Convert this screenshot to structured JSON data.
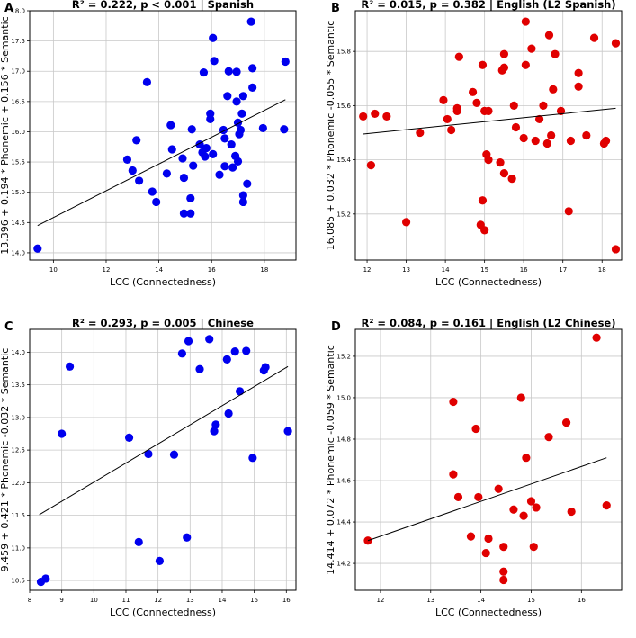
{
  "colors": {
    "blue": "#0000ee",
    "red": "#e00000",
    "grid": "#c8c8c8",
    "line": "#000000"
  },
  "chart_data": [
    {
      "type": "scatter",
      "panel_label": "A",
      "title": "R² = 0.222, p < 0.001 | Spanish",
      "xlabel": "LCC (Connectedness)",
      "ylabel": "13.396 + 0.194 * Phonemic + 0.156 * Semantic",
      "xlim": [
        9.1,
        19.2
      ],
      "ylim": [
        13.88,
        18.0
      ],
      "xticks": [
        10,
        12,
        14,
        16,
        18
      ],
      "yticks": [
        14.0,
        14.5,
        15.0,
        15.5,
        16.0,
        16.5,
        17.0,
        17.5,
        18.0
      ],
      "xtick_labels": [
        "10",
        "12",
        "14",
        "16",
        "18"
      ],
      "ytick_labels": [
        "14.0",
        "14.5",
        "15.0",
        "15.5",
        "16.0",
        "16.5",
        "17.0",
        "17.5",
        "18.0"
      ],
      "grid": true,
      "color": "blue",
      "fit_line": {
        "x": [
          9.4,
          18.8
        ],
        "y": [
          14.45,
          16.53
        ]
      },
      "points": [
        [
          9.4,
          14.07
        ],
        [
          12.8,
          15.54
        ],
        [
          13.0,
          15.36
        ],
        [
          13.15,
          15.86
        ],
        [
          13.25,
          15.19
        ],
        [
          13.55,
          16.82
        ],
        [
          13.75,
          15.01
        ],
        [
          13.9,
          14.84
        ],
        [
          14.3,
          15.31
        ],
        [
          14.45,
          16.11
        ],
        [
          14.5,
          15.71
        ],
        [
          14.9,
          15.56
        ],
        [
          14.95,
          15.24
        ],
        [
          14.95,
          14.65
        ],
        [
          15.2,
          14.9
        ],
        [
          15.2,
          14.65
        ],
        [
          15.3,
          15.44
        ],
        [
          15.25,
          16.04
        ],
        [
          15.55,
          15.79
        ],
        [
          15.65,
          15.66
        ],
        [
          15.7,
          16.98
        ],
        [
          15.75,
          15.59
        ],
        [
          15.8,
          15.73
        ],
        [
          15.95,
          16.3
        ],
        [
          15.95,
          16.21
        ],
        [
          16.05,
          17.55
        ],
        [
          16.1,
          17.17
        ],
        [
          16.05,
          15.63
        ],
        [
          16.3,
          15.29
        ],
        [
          16.45,
          16.03
        ],
        [
          16.5,
          15.43
        ],
        [
          16.5,
          15.89
        ],
        [
          16.6,
          16.59
        ],
        [
          16.65,
          17.0
        ],
        [
          16.75,
          15.79
        ],
        [
          16.8,
          15.41
        ],
        [
          16.9,
          15.6
        ],
        [
          16.95,
          16.5
        ],
        [
          16.95,
          16.99
        ],
        [
          17.0,
          16.15
        ],
        [
          17.05,
          15.96
        ],
        [
          17.0,
          15.51
        ],
        [
          17.15,
          16.3
        ],
        [
          17.2,
          16.59
        ],
        [
          17.2,
          14.95
        ],
        [
          17.2,
          14.84
        ],
        [
          17.35,
          15.14
        ],
        [
          17.5,
          17.82
        ],
        [
          17.55,
          17.05
        ],
        [
          17.55,
          16.73
        ],
        [
          17.95,
          16.06
        ],
        [
          18.75,
          16.04
        ],
        [
          18.8,
          17.16
        ],
        [
          17.1,
          16.03
        ]
      ]
    },
    {
      "type": "scatter",
      "panel_label": "B",
      "title": "R² = 0.015, p = 0.382 | English (L2 Spanish)",
      "xlabel": "LCC (Connectedness)",
      "ylabel": "16.085 + 0.032 * Phonemic -0.055 * Semantic",
      "xlim": [
        11.7,
        18.5
      ],
      "ylim": [
        15.03,
        15.95
      ],
      "xticks": [
        12,
        13,
        14,
        15,
        16,
        17,
        18
      ],
      "yticks": [
        15.2,
        15.4,
        15.6,
        15.8
      ],
      "xtick_labels": [
        "12",
        "13",
        "14",
        "15",
        "16",
        "17",
        "18"
      ],
      "ytick_labels": [
        "15.2",
        "15.4",
        "15.6",
        "15.8"
      ],
      "grid": true,
      "color": "red",
      "fit_line": {
        "x": [
          11.9,
          18.35
        ],
        "y": [
          15.495,
          15.59
        ]
      },
      "points": [
        [
          11.9,
          15.56
        ],
        [
          12.1,
          15.38
        ],
        [
          12.2,
          15.57
        ],
        [
          12.5,
          15.56
        ],
        [
          13.0,
          15.17
        ],
        [
          13.35,
          15.5
        ],
        [
          13.95,
          15.62
        ],
        [
          14.05,
          15.55
        ],
        [
          14.15,
          15.51
        ],
        [
          14.3,
          15.59
        ],
        [
          14.3,
          15.58
        ],
        [
          14.35,
          15.78
        ],
        [
          14.7,
          15.65
        ],
        [
          14.8,
          15.61
        ],
        [
          14.9,
          15.16
        ],
        [
          14.95,
          15.75
        ],
        [
          14.95,
          15.25
        ],
        [
          15.0,
          15.58
        ],
        [
          15.0,
          15.14
        ],
        [
          15.05,
          15.42
        ],
        [
          15.1,
          15.4
        ],
        [
          15.1,
          15.58
        ],
        [
          15.4,
          15.39
        ],
        [
          15.45,
          15.73
        ],
        [
          15.5,
          15.74
        ],
        [
          15.5,
          15.35
        ],
        [
          15.5,
          15.79
        ],
        [
          15.7,
          15.33
        ],
        [
          15.75,
          15.6
        ],
        [
          15.8,
          15.52
        ],
        [
          16.0,
          15.48
        ],
        [
          16.05,
          15.91
        ],
        [
          16.05,
          15.75
        ],
        [
          16.2,
          15.81
        ],
        [
          16.3,
          15.47
        ],
        [
          16.4,
          15.55
        ],
        [
          16.5,
          15.6
        ],
        [
          16.6,
          15.46
        ],
        [
          16.65,
          15.86
        ],
        [
          16.7,
          15.49
        ],
        [
          16.75,
          15.66
        ],
        [
          16.8,
          15.79
        ],
        [
          16.95,
          15.58
        ],
        [
          17.15,
          15.21
        ],
        [
          17.2,
          15.47
        ],
        [
          17.4,
          15.72
        ],
        [
          17.4,
          15.67
        ],
        [
          17.6,
          15.49
        ],
        [
          17.8,
          15.85
        ],
        [
          18.05,
          15.46
        ],
        [
          18.1,
          15.47
        ],
        [
          18.35,
          15.83
        ],
        [
          18.35,
          15.07
        ]
      ]
    },
    {
      "type": "scatter",
      "panel_label": "C",
      "title": "R² = 0.293, p = 0.005 | Chinese",
      "xlabel": "LCC (Connectedness)",
      "ylabel": "9.459 + 0.421 * Phonemic -0.032 * Semantic",
      "xlim": [
        8.0,
        16.3
      ],
      "ylim": [
        10.35,
        14.35
      ],
      "xticks": [
        8,
        9,
        10,
        11,
        12,
        13,
        14,
        15,
        16
      ],
      "yticks": [
        10.5,
        11.0,
        11.5,
        12.0,
        12.5,
        13.0,
        13.5,
        14.0
      ],
      "xtick_labels": [
        "8",
        "9",
        "10",
        "11",
        "12",
        "13",
        "14",
        "15",
        "16"
      ],
      "ytick_labels": [
        "10.5",
        "11.0",
        "11.5",
        "12.0",
        "12.5",
        "13.0",
        "13.5",
        "14.0"
      ],
      "grid": true,
      "color": "blue",
      "fit_line": {
        "x": [
          8.3,
          16.05
        ],
        "y": [
          11.51,
          13.78
        ]
      },
      "points": [
        [
          8.35,
          10.48
        ],
        [
          8.5,
          10.53
        ],
        [
          9.0,
          12.75
        ],
        [
          9.25,
          13.78
        ],
        [
          11.1,
          12.69
        ],
        [
          11.4,
          11.09
        ],
        [
          11.7,
          12.44
        ],
        [
          12.05,
          10.8
        ],
        [
          12.5,
          12.43
        ],
        [
          12.75,
          13.98
        ],
        [
          12.9,
          11.16
        ],
        [
          12.95,
          14.17
        ],
        [
          13.3,
          13.74
        ],
        [
          13.6,
          14.2
        ],
        [
          13.75,
          12.79
        ],
        [
          13.8,
          12.89
        ],
        [
          14.15,
          13.89
        ],
        [
          14.2,
          13.06
        ],
        [
          14.4,
          14.01
        ],
        [
          14.55,
          13.4
        ],
        [
          14.75,
          14.02
        ],
        [
          14.95,
          12.38
        ],
        [
          15.3,
          13.72
        ],
        [
          15.35,
          13.77
        ],
        [
          16.05,
          12.79
        ]
      ]
    },
    {
      "type": "scatter",
      "panel_label": "D",
      "title": "R² = 0.084, p = 0.161 | English (L2 Chinese)",
      "xlabel": "LCC (Connectedness)",
      "ylabel": "14.414 + 0.072 * Phonemic -0.059 * Semantic",
      "xlim": [
        11.5,
        16.8
      ],
      "ylim": [
        14.07,
        15.33
      ],
      "xticks": [
        12,
        13,
        14,
        15,
        16
      ],
      "yticks": [
        14.2,
        14.4,
        14.6,
        14.8,
        15.0,
        15.2
      ],
      "xtick_labels": [
        "12",
        "13",
        "14",
        "15",
        "16"
      ],
      "ytick_labels": [
        "14.2",
        "14.4",
        "14.6",
        "14.8",
        "15.0",
        "15.2"
      ],
      "grid": true,
      "color": "red",
      "fit_line": {
        "x": [
          11.75,
          16.5
        ],
        "y": [
          14.31,
          14.71
        ]
      },
      "points": [
        [
          11.75,
          14.31
        ],
        [
          13.45,
          14.98
        ],
        [
          13.45,
          14.63
        ],
        [
          13.55,
          14.52
        ],
        [
          13.8,
          14.33
        ],
        [
          13.9,
          14.85
        ],
        [
          13.95,
          14.52
        ],
        [
          14.1,
          14.25
        ],
        [
          14.15,
          14.32
        ],
        [
          14.35,
          14.56
        ],
        [
          14.45,
          14.16
        ],
        [
          14.45,
          14.12
        ],
        [
          14.45,
          14.28
        ],
        [
          14.65,
          14.46
        ],
        [
          14.8,
          15.0
        ],
        [
          14.85,
          14.43
        ],
        [
          14.9,
          14.71
        ],
        [
          15.0,
          14.5
        ],
        [
          15.05,
          14.28
        ],
        [
          15.1,
          14.47
        ],
        [
          15.35,
          14.81
        ],
        [
          15.7,
          14.88
        ],
        [
          15.8,
          14.45
        ],
        [
          16.3,
          15.29
        ],
        [
          16.5,
          14.48
        ]
      ]
    }
  ]
}
